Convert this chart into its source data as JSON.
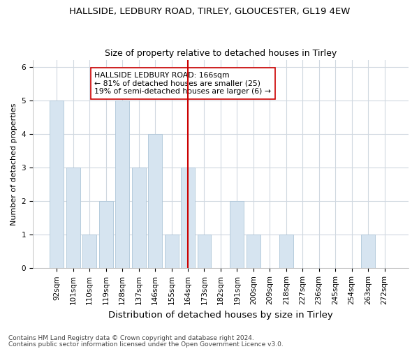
{
  "title": "HALLSIDE, LEDBURY ROAD, TIRLEY, GLOUCESTER, GL19 4EW",
  "subtitle": "Size of property relative to detached houses in Tirley",
  "xlabel": "Distribution of detached houses by size in Tirley",
  "ylabel": "Number of detached properties",
  "footer1": "Contains HM Land Registry data © Crown copyright and database right 2024.",
  "footer2": "Contains public sector information licensed under the Open Government Licence v3.0.",
  "categories": [
    "92sqm",
    "101sqm",
    "110sqm",
    "119sqm",
    "128sqm",
    "137sqm",
    "146sqm",
    "155sqm",
    "164sqm",
    "173sqm",
    "182sqm",
    "191sqm",
    "200sqm",
    "209sqm",
    "218sqm",
    "227sqm",
    "236sqm",
    "245sqm",
    "254sqm",
    "263sqm",
    "272sqm"
  ],
  "values": [
    5,
    3,
    1,
    2,
    5,
    3,
    4,
    1,
    3,
    1,
    0,
    2,
    1,
    0,
    1,
    0,
    0,
    0,
    0,
    1,
    0
  ],
  "bar_color": "#d6e4f0",
  "bar_edge_color": "#aec6d8",
  "vline_x_index": 8,
  "vline_color": "#cc0000",
  "annotation_text": "HALLSIDE LEDBURY ROAD: 166sqm\n← 81% of detached houses are smaller (25)\n19% of semi-detached houses are larger (6) →",
  "annotation_box_color": "#ffffff",
  "annotation_box_edge": "#cc0000",
  "ylim": [
    0,
    6.2
  ],
  "yticks": [
    0,
    1,
    2,
    3,
    4,
    5,
    6
  ],
  "background_color": "#ffffff",
  "plot_bg_color": "#ffffff",
  "title_fontsize": 9.5,
  "subtitle_fontsize": 9,
  "xlabel_fontsize": 9.5,
  "ylabel_fontsize": 8,
  "tick_fontsize": 7.5,
  "footer_fontsize": 6.5,
  "grid_color": "#d0d8e0"
}
